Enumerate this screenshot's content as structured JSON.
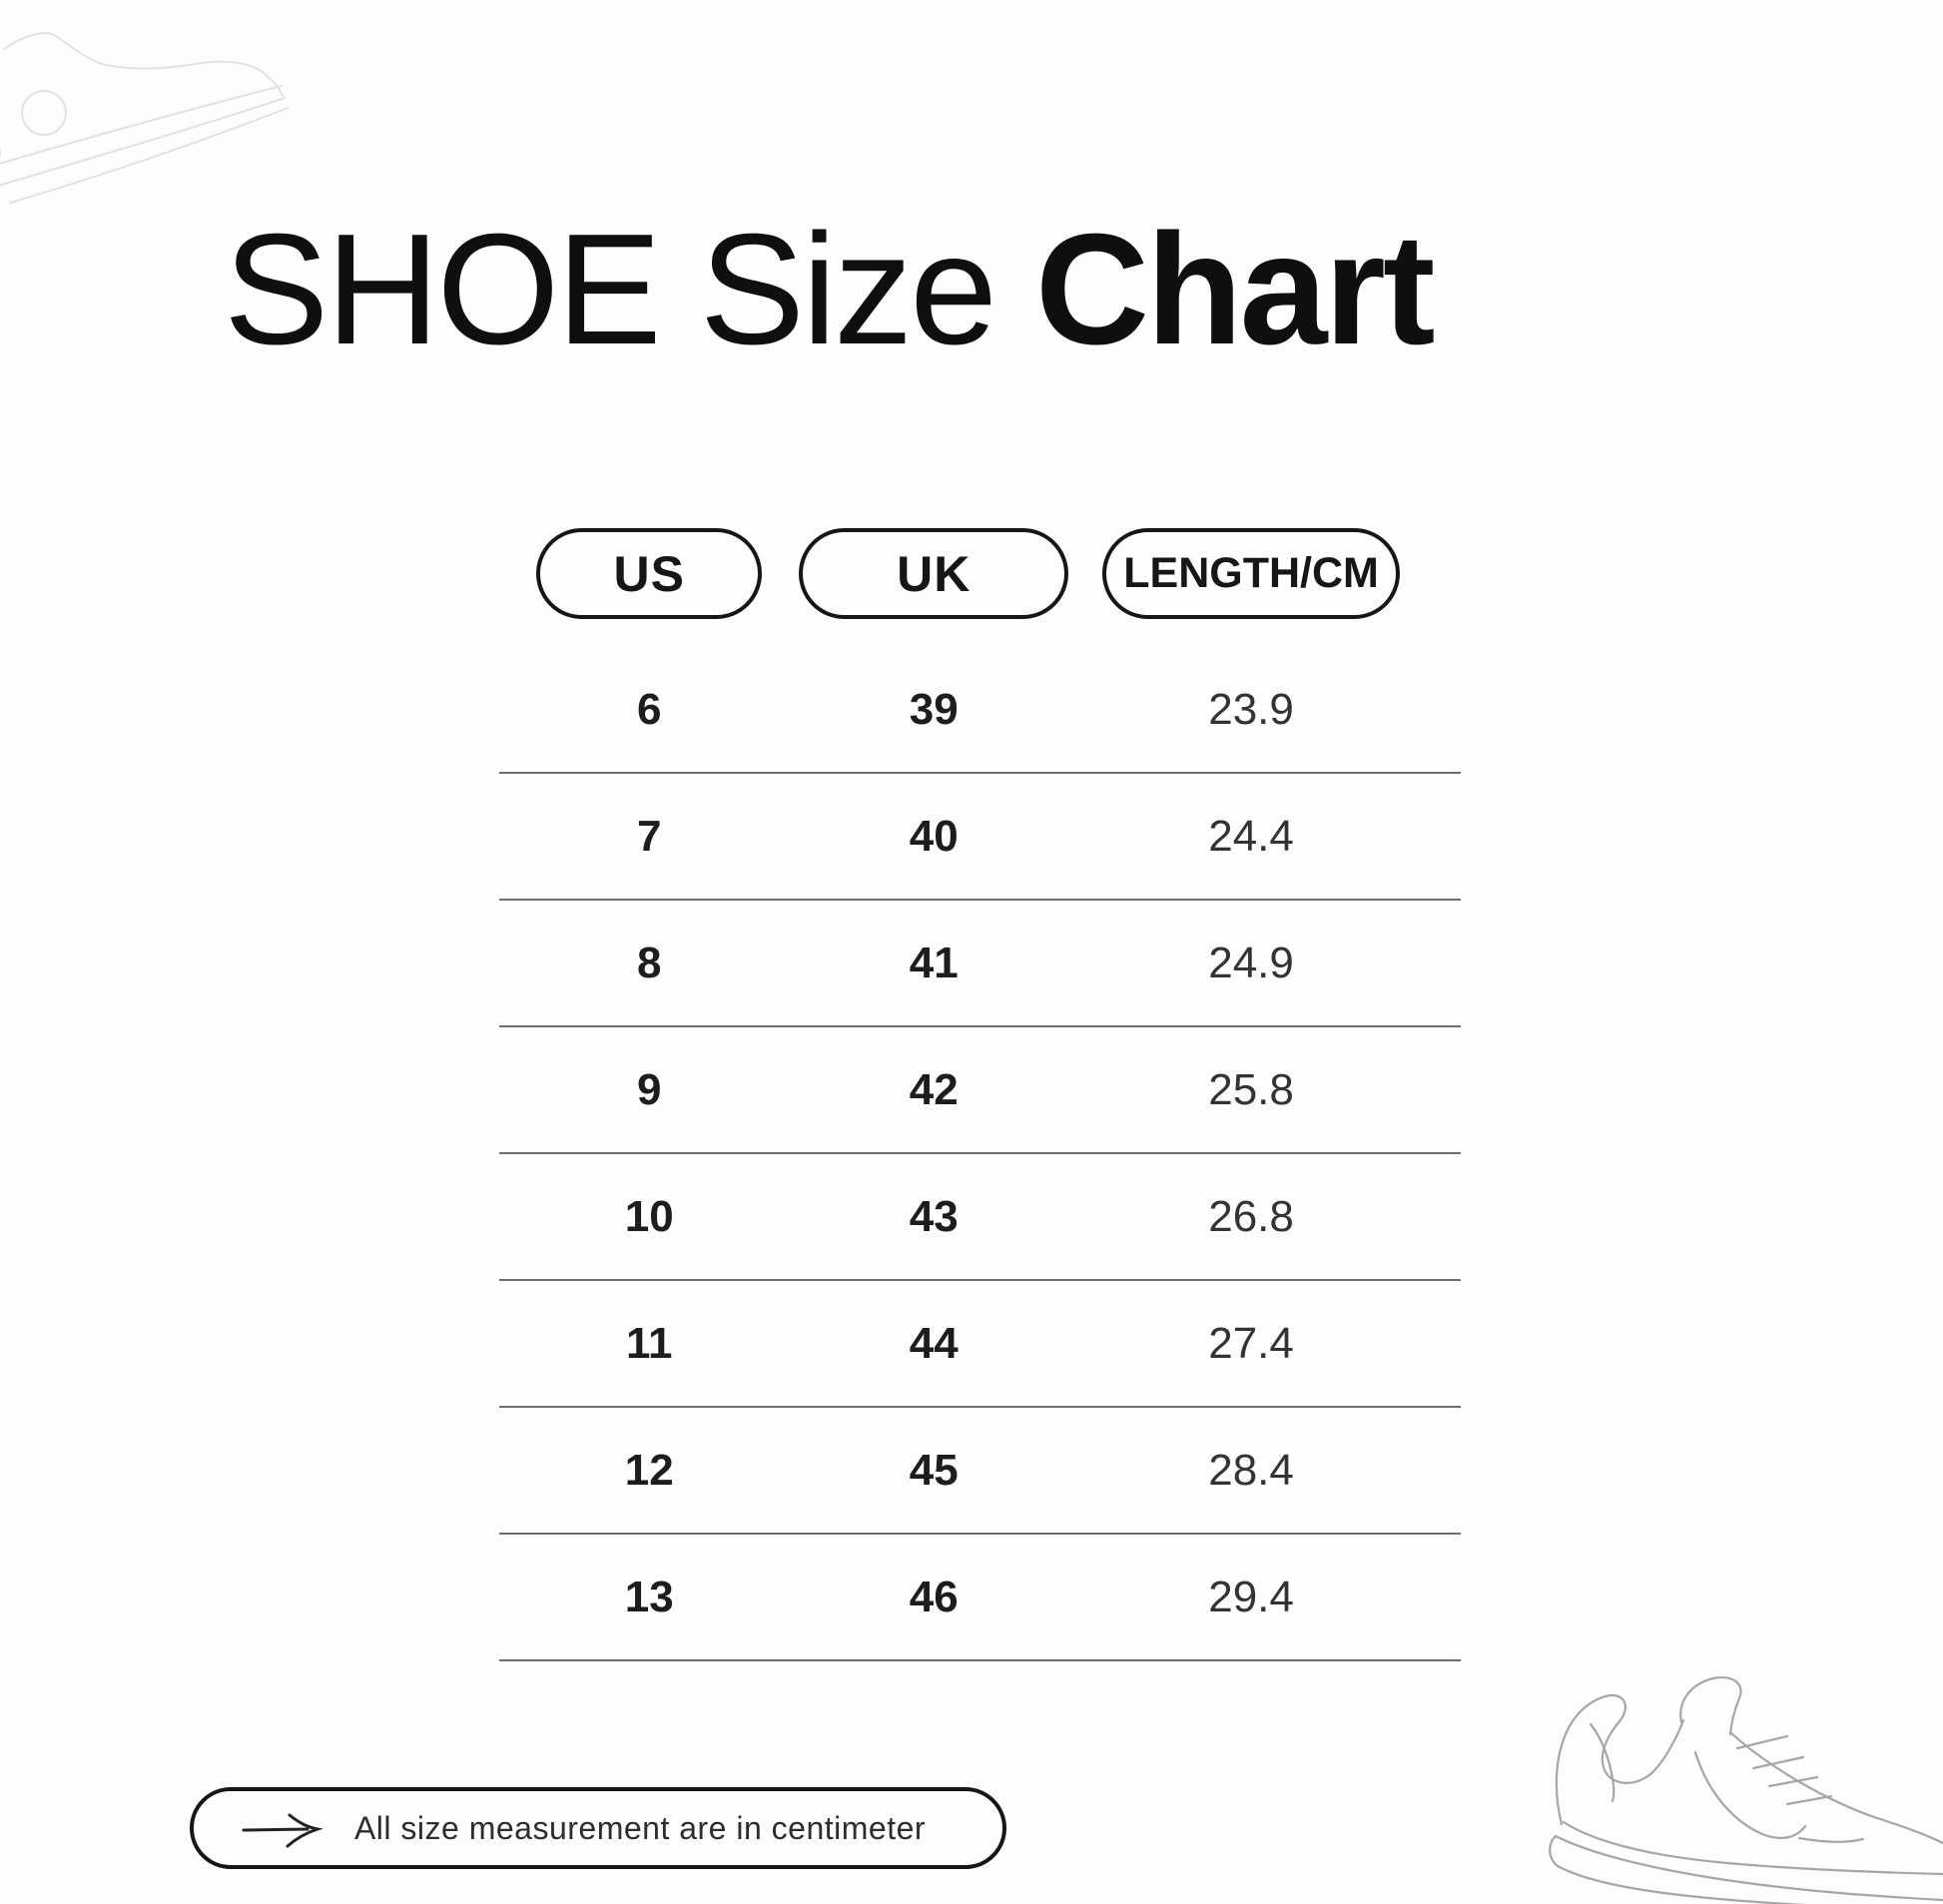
{
  "title": {
    "regular": "SHOE Size",
    "bold": "Chart"
  },
  "chart_data": {
    "type": "table",
    "title": "SHOE Size Chart",
    "columns": [
      "US",
      "UK",
      "LENGTH/CM"
    ],
    "rows": [
      [
        "6",
        "39",
        "23.9"
      ],
      [
        "7",
        "40",
        "24.4"
      ],
      [
        "8",
        "41",
        "24.9"
      ],
      [
        "9",
        "42",
        "25.8"
      ],
      [
        "10",
        "43",
        "26.8"
      ],
      [
        "11",
        "44",
        "27.4"
      ],
      [
        "12",
        "45",
        "28.4"
      ],
      [
        "13",
        "46",
        "29.4"
      ]
    ],
    "note": "All size measurement are in centimeter"
  },
  "table": {
    "headers": [
      {
        "label": "US"
      },
      {
        "label": "UK"
      },
      {
        "label": "LENGTH/CM"
      }
    ],
    "rows": [
      {
        "us": "6",
        "uk": "39",
        "length_cm": "23.9"
      },
      {
        "us": "7",
        "uk": "40",
        "length_cm": "24.4"
      },
      {
        "us": "8",
        "uk": "41",
        "length_cm": "24.9"
      },
      {
        "us": "9",
        "uk": "42",
        "length_cm": "25.8"
      },
      {
        "us": "10",
        "uk": "43",
        "length_cm": "26.8"
      },
      {
        "us": "11",
        "uk": "44",
        "length_cm": "27.4"
      },
      {
        "us": "12",
        "uk": "45",
        "length_cm": "28.4"
      },
      {
        "us": "13",
        "uk": "46",
        "length_cm": "29.4"
      }
    ]
  },
  "footer": {
    "note": "All size measurement are in centimeter"
  },
  "icons": {
    "right_arrow": "long-right-arrow",
    "top_left": "hightop-sneaker-outline-sketch",
    "bottom_right": "running-shoe-outline-sketch"
  },
  "colors": {
    "background": "#fdfdfc",
    "text": "#0f0f0f",
    "pill_border": "#161616",
    "divider": "#6e6e6e",
    "sketch_faint": "#e0e0e0",
    "sketch_gray": "#a6a6a6"
  }
}
